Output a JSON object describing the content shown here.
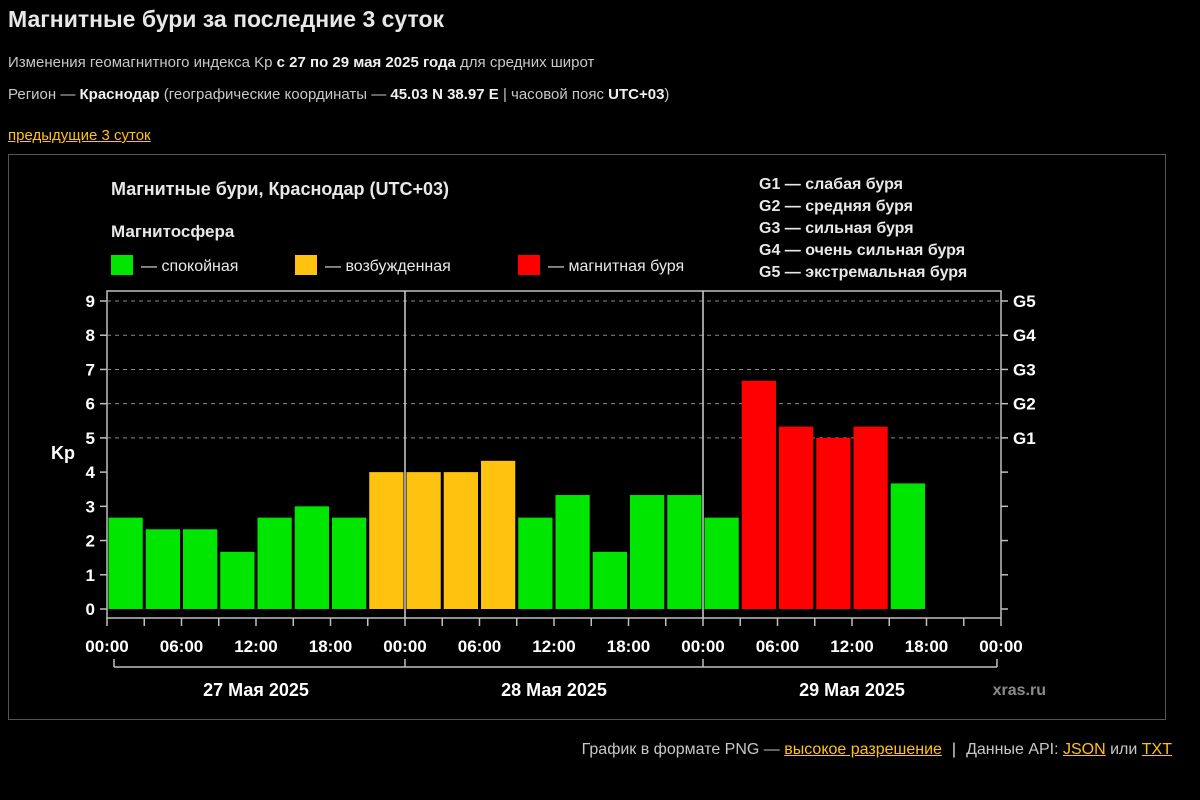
{
  "header": {
    "title": "Магнитные бури за последние 3 суток",
    "line1_prefix": "Изменения геомагнитного индекса Kp ",
    "line1_bold": "с 27 по 29 мая 2025 года",
    "line1_suffix": " для средних широт",
    "line2_prefix": "Регион — ",
    "line2_region": "Краснодар",
    "line2_mid": " (географические координаты — ",
    "line2_coords": "45.03 N 38.97 E",
    "line2_tz_prefix": " | часовой пояс ",
    "line2_tz": "UTC+03",
    "line2_suffix": ")",
    "prev_link": "предыдущие 3 суток"
  },
  "chart_data": {
    "type": "bar",
    "title": "Магнитные бури, Краснодар (UTC+03)",
    "ylabel": "Kp",
    "ylim": [
      0,
      9
    ],
    "y_ticks": [
      "0",
      "1",
      "2",
      "3",
      "4",
      "5",
      "6",
      "7",
      "8",
      "9"
    ],
    "right_ticks": [
      {
        "label": "G1",
        "value": 5
      },
      {
        "label": "G2",
        "value": 6
      },
      {
        "label": "G3",
        "value": 7
      },
      {
        "label": "G4",
        "value": 8
      },
      {
        "label": "G5",
        "value": 9
      }
    ],
    "x_tick_labels": [
      "00:00",
      "06:00",
      "12:00",
      "18:00",
      "00:00",
      "06:00",
      "12:00",
      "18:00",
      "00:00",
      "06:00",
      "12:00",
      "18:00",
      "00:00"
    ],
    "days": [
      "27 Мая 2025",
      "28 Мая 2025",
      "29 Мая 2025"
    ],
    "slots_per_day": 8,
    "legend_title": "Магнитосфера",
    "legend": [
      {
        "label": "— спокойная",
        "color": "#00e600"
      },
      {
        "label": "— возбужденная",
        "color": "#ffc20e"
      },
      {
        "label": "— магнитная буря",
        "color": "#ff0000"
      }
    ],
    "storm_levels": [
      "G1 — слабая буря",
      "G2 — средняя буря",
      "G3 — сильная буря",
      "G4 — очень сильная буря",
      "G5 — экстремальная буря"
    ],
    "values": [
      2.67,
      2.33,
      2.33,
      1.67,
      2.67,
      3.0,
      2.67,
      4.0,
      4.0,
      4.0,
      4.33,
      2.67,
      3.33,
      1.67,
      3.33,
      3.33,
      2.67,
      6.67,
      5.33,
      5.0,
      5.33,
      3.67
    ],
    "states": [
      "calm",
      "calm",
      "calm",
      "calm",
      "calm",
      "calm",
      "calm",
      "excited",
      "excited",
      "excited",
      "excited",
      "calm",
      "calm",
      "calm",
      "calm",
      "calm",
      "calm",
      "storm",
      "storm",
      "storm",
      "storm",
      "calm"
    ],
    "state_colors": {
      "calm": "#00e600",
      "excited": "#ffc20e",
      "storm": "#ff0000"
    },
    "watermark": "xras.ru"
  },
  "footer": {
    "png_text": "График в формате PNG — ",
    "png_link": "высокое разрешение",
    "separator": "|",
    "api_text": "Данные API: ",
    "json_link": "JSON",
    "or_text": " или ",
    "txt_link": "TXT"
  }
}
